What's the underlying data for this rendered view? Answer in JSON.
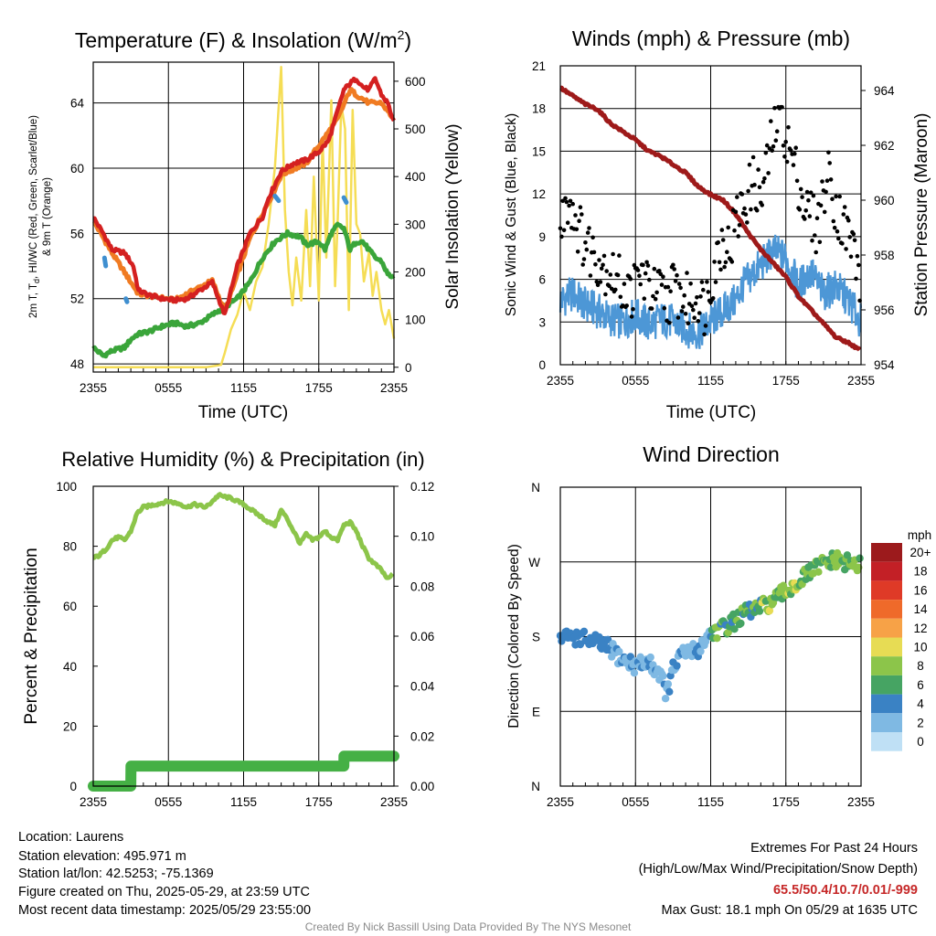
{
  "colors": {
    "temp": "#d42020",
    "temp9m": "#f07b22",
    "dewpoint": "#3aa53a",
    "hiwc": "#3f8fd0",
    "solar": "#f5dd55",
    "wind": "#4d97d6",
    "gust": "#000000",
    "pressure": "#9e1a1a",
    "rh": "#8cc54a",
    "precip": "#45b045"
  },
  "chart_data": [
    {
      "type": "line",
      "title": "Temperature (F) & Insolation (W/m²)",
      "xlabel": "Time (UTC)",
      "ylabel": "2m T, Td, HI/WC (Red, Green, Scarlet/Blue) & 9m T (Orange)",
      "y2label": "Solar Insolation (Yellow)",
      "x_ticks": [
        "2355",
        "0555",
        "1155",
        "1755",
        "2355"
      ],
      "y_ticks": [
        48,
        52,
        56,
        60,
        64
      ],
      "y2_ticks": [
        0,
        100,
        200,
        300,
        400,
        500,
        600
      ],
      "ylim": [
        47.5,
        66.5
      ],
      "y2lim": [
        -10,
        640
      ],
      "xlim_hours": [
        0,
        24
      ],
      "series": [
        {
          "name": "2m T",
          "x": [
            0,
            0.8,
            1.5,
            2.5,
            3.2,
            3.6,
            4.5,
            5.5,
            6.5,
            7.5,
            8.5,
            9.5,
            10.1,
            10.5,
            11.5,
            12.5,
            13.5,
            14.0,
            14.5,
            15.0,
            16.0,
            17.0,
            18.0,
            18.8,
            19.5,
            20.0,
            20.5,
            21.0,
            21.5,
            22.0,
            22.5,
            23.0,
            23.5,
            24
          ],
          "y": [
            57.0,
            56.0,
            55.0,
            54.8,
            54.0,
            52.5,
            52.2,
            52.0,
            51.9,
            52.0,
            52.5,
            53.0,
            51.8,
            51.0,
            54.0,
            56.0,
            57.0,
            58.2,
            59.0,
            59.8,
            60.3,
            60.5,
            61.0,
            61.7,
            63.5,
            64.8,
            65.2,
            65.5,
            65.0,
            64.8,
            65.5,
            64.5,
            64.0,
            62.8
          ]
        },
        {
          "name": "9m T",
          "x": [
            0,
            1.5,
            3.6,
            6.5,
            9.5,
            10.5,
            12.5,
            14.5,
            15.0,
            17.0,
            19.5,
            20.5,
            21.0,
            22.0,
            23.0,
            24
          ],
          "y": [
            56.8,
            54.8,
            52.3,
            51.9,
            53.1,
            51.2,
            55.7,
            58.7,
            59.6,
            60.3,
            63.0,
            64.8,
            64.5,
            64.0,
            64.0,
            63.0
          ]
        },
        {
          "name": "Td",
          "x": [
            0,
            0.8,
            1.5,
            2.5,
            3.0,
            3.5,
            4.5,
            5.5,
            6.5,
            7.5,
            8.5,
            9.5,
            10.5,
            11.5,
            12.5,
            13.5,
            14.0,
            14.5,
            15.5,
            16.5,
            17.0,
            18.0,
            18.5,
            19.0,
            19.5,
            20.0,
            20.5,
            21.0,
            21.5,
            22.0,
            22.5,
            23.0,
            23.5,
            24
          ],
          "y": [
            49.0,
            48.5,
            48.8,
            49.0,
            49.5,
            49.8,
            50.0,
            50.3,
            50.5,
            50.3,
            50.5,
            51.0,
            51.5,
            52.0,
            53.0,
            54.5,
            55.0,
            55.5,
            56.0,
            55.8,
            55.3,
            55.5,
            55.0,
            56.0,
            56.5,
            56.3,
            55.0,
            55.5,
            55.5,
            55.0,
            54.5,
            54.3,
            53.5,
            53.3
          ]
        },
        {
          "name": "HI/WC",
          "x": [
            0.9,
            1.0,
            2.6,
            2.7,
            14.5,
            14.8,
            20.0,
            20.2
          ],
          "y": [
            54.5,
            54.0,
            52.0,
            51.8,
            58.3,
            58.0,
            58.2,
            57.9
          ]
        },
        {
          "name": "Solar Insolation",
          "x": [
            0,
            3,
            6,
            9,
            10.2,
            10.5,
            11,
            11.5,
            12.0,
            12.5,
            13.0,
            13.5,
            14.0,
            14.5,
            15.0,
            15.3,
            15.6,
            15.9,
            16.2,
            16.6,
            17.0,
            17.3,
            17.6,
            18.0,
            18.3,
            18.6,
            19.0,
            19.3,
            19.5,
            19.8,
            20.1,
            20.4,
            20.7,
            21.0,
            21.3,
            21.6,
            22.0,
            22.3,
            22.6,
            23.0,
            23.3,
            23.6,
            24
          ],
          "y": [
            0,
            0,
            0,
            0,
            5,
            30,
            80,
            110,
            160,
            120,
            180,
            210,
            300,
            420,
            630,
            330,
            200,
            130,
            230,
            140,
            330,
            170,
            400,
            140,
            480,
            230,
            560,
            170,
            300,
            550,
            500,
            120,
            540,
            300,
            280,
            180,
            240,
            150,
            200,
            120,
            90,
            120,
            60
          ]
        }
      ]
    },
    {
      "type": "line",
      "title": "Winds (mph) & Pressure (mb)",
      "xlabel": "Time (UTC)",
      "ylabel": "Sonic Wind & Gust (Blue, Black)",
      "y2label": "Station Pressure (Maroon)",
      "x_ticks": [
        "2355",
        "0555",
        "1155",
        "1755",
        "2355"
      ],
      "y_ticks": [
        0,
        3,
        6,
        9,
        12,
        15,
        18,
        21
      ],
      "y2_ticks": [
        954,
        956,
        958,
        960,
        962,
        964
      ],
      "ylim": [
        0,
        21
      ],
      "y2lim": [
        954,
        964.9
      ],
      "xlim_hours": [
        0,
        24
      ],
      "series": [
        {
          "name": "Sonic Wind",
          "x": [
            0,
            1,
            2,
            3,
            4,
            5,
            6,
            7,
            8,
            9,
            10,
            11,
            12,
            13,
            14,
            14.5,
            15,
            15.5,
            16,
            17,
            18,
            19,
            20,
            21,
            22,
            23,
            24
          ],
          "y": [
            4.5,
            5.0,
            4.2,
            3.8,
            3.2,
            3.0,
            3.5,
            2.8,
            3.2,
            3.0,
            2.5,
            2.2,
            3.0,
            3.8,
            4.5,
            5.5,
            6.0,
            6.5,
            7.0,
            8.0,
            7.5,
            5.5,
            6.5,
            5.0,
            5.5,
            4.5,
            3.0
          ]
        },
        {
          "name": "Gust",
          "x": [
            0,
            0.5,
            1,
            1.5,
            2,
            2.5,
            3,
            3.5,
            4,
            4.5,
            5,
            5.5,
            6,
            6.5,
            7,
            7.5,
            8,
            8.5,
            9,
            9.5,
            10,
            10.5,
            11,
            11.5,
            12,
            12.5,
            13,
            13.5,
            14,
            14.5,
            15,
            15.5,
            16,
            16.5,
            17,
            17.5,
            18,
            18.5,
            19,
            19.5,
            20,
            20.5,
            21,
            21.5,
            22,
            22.5,
            23,
            23.5,
            24
          ],
          "y": [
            9.0,
            12.0,
            11.0,
            9.5,
            8.5,
            8.0,
            7.5,
            7.0,
            6.5,
            6.0,
            5.5,
            5.0,
            5.5,
            6.5,
            5.5,
            5.0,
            5.0,
            4.5,
            5.5,
            5.0,
            4.5,
            4.5,
            5.0,
            4.0,
            6.0,
            7.5,
            9.0,
            8.0,
            10.0,
            11.0,
            12.0,
            13.0,
            11.5,
            14.0,
            16.0,
            18.1,
            16.0,
            14.5,
            13.0,
            11.0,
            10.5,
            9.5,
            12.0,
            13.5,
            11.0,
            10.0,
            9.0,
            8.0,
            5.5
          ]
        },
        {
          "name": "Station Pressure",
          "x": [
            0,
            1,
            2,
            3,
            4,
            5,
            6,
            7,
            8,
            9,
            10,
            11,
            12,
            13,
            14,
            15,
            16,
            17,
            18,
            19,
            20,
            21,
            22,
            23,
            24
          ],
          "y": [
            964.1,
            963.8,
            963.5,
            963.3,
            962.8,
            962.5,
            962.2,
            961.8,
            961.6,
            961.3,
            961.0,
            960.5,
            960.2,
            960.0,
            959.5,
            958.8,
            958.2,
            957.7,
            957.2,
            956.5,
            956.0,
            955.5,
            955.0,
            954.8,
            954.5
          ]
        }
      ]
    },
    {
      "type": "line",
      "title": "Relative Humidity (%) & Precipitation (in)",
      "xlabel": "",
      "ylabel": "Percent & Precipitation",
      "x_ticks": [
        "2355",
        "0555",
        "1155",
        "1755",
        "2355"
      ],
      "y_ticks": [
        0,
        20,
        40,
        60,
        80,
        100
      ],
      "y2_ticks": [
        "0.00",
        "0.02",
        "0.04",
        "0.06",
        "0.08",
        "0.10",
        "0.12"
      ],
      "ylim": [
        0,
        100
      ],
      "y2lim": [
        0,
        0.12
      ],
      "xlim_hours": [
        0,
        24
      ],
      "series": [
        {
          "name": "Relative Humidity",
          "x": [
            0,
            0.5,
            1,
            1.5,
            2,
            2.5,
            3,
            3.5,
            4,
            5,
            6,
            7,
            7.5,
            8,
            9,
            9.5,
            10,
            11,
            12,
            13,
            14,
            14.5,
            15,
            15.5,
            16,
            16.5,
            17,
            17.5,
            18,
            18.5,
            19,
            19.5,
            20,
            20.5,
            21,
            21.5,
            22,
            23,
            23.5,
            24
          ],
          "y": [
            76,
            77,
            79,
            82,
            83,
            82,
            85,
            91,
            93,
            94,
            95,
            94,
            93,
            94,
            93,
            95,
            97,
            96,
            94,
            91,
            88,
            87,
            92,
            89,
            85,
            81,
            84,
            82,
            83,
            85,
            83,
            82,
            87,
            88,
            85,
            80,
            76,
            72,
            69,
            71
          ]
        },
        {
          "name": "Precipitation",
          "x": [
            0,
            3.0,
            3.01,
            20.0,
            20.01,
            24
          ],
          "y": [
            0.0,
            0.0,
            0.008,
            0.008,
            0.012,
            0.012
          ]
        }
      ]
    },
    {
      "type": "scatter",
      "title": "Wind Direction",
      "xlabel": "",
      "ylabel": "Direction (Colored By Speed)",
      "x_ticks": [
        "2355",
        "0555",
        "1155",
        "1755",
        "2355"
      ],
      "y_ticks": [
        "N",
        "E",
        "S",
        "W",
        "N"
      ],
      "ylim": [
        0,
        360
      ],
      "xlim_hours": [
        0,
        24
      ],
      "colorbar_title": "mph",
      "colorbar_labels": [
        "20+",
        "18",
        "16",
        "14",
        "12",
        "10",
        "8",
        "6",
        "4",
        "2",
        "0"
      ],
      "colorbar_colors": [
        "#9c1a1c",
        "#c32026",
        "#df3a27",
        "#ef6a2a",
        "#f7a247",
        "#e7dc54",
        "#8cc54a",
        "#46a463",
        "#3a82c4",
        "#7fb9e3",
        "#bfe0f5"
      ],
      "series": [
        {
          "name": "Direction",
          "x": [
            0,
            1,
            2,
            3,
            4,
            5,
            6,
            7,
            8,
            8.5,
            9,
            9.5,
            10,
            11,
            12,
            13,
            14,
            15,
            16,
            17,
            18,
            19,
            20,
            21,
            22,
            23,
            24
          ],
          "y": [
            178,
            180,
            177,
            172,
            165,
            152,
            145,
            150,
            135,
            110,
            140,
            155,
            160,
            165,
            185,
            190,
            200,
            210,
            215,
            222,
            235,
            245,
            258,
            268,
            272,
            268,
            265
          ]
        }
      ]
    }
  ],
  "footer": {
    "location": "Location: Laurens",
    "elevation": "Station elevation: 495.971 m",
    "latlon": "Station lat/lon: 42.5253; -75.1369",
    "created": "Figure created on Thu, 2025-05-29, at 23:59 UTC",
    "recent": "Most recent data timestamp: 2025/05/29 23:55:00",
    "extremes_title": "Extremes For Past 24 Hours",
    "extremes_sub": "(High/Low/Max Wind/Precipitation/Snow Depth)",
    "extremes_values": "65.5/50.4/10.7/0.01/-999",
    "max_gust": "Max Gust: 18.1 mph On 05/29 at 1635 UTC",
    "credit": "Created By Nick Bassill Using Data Provided By The NYS Mesonet"
  }
}
